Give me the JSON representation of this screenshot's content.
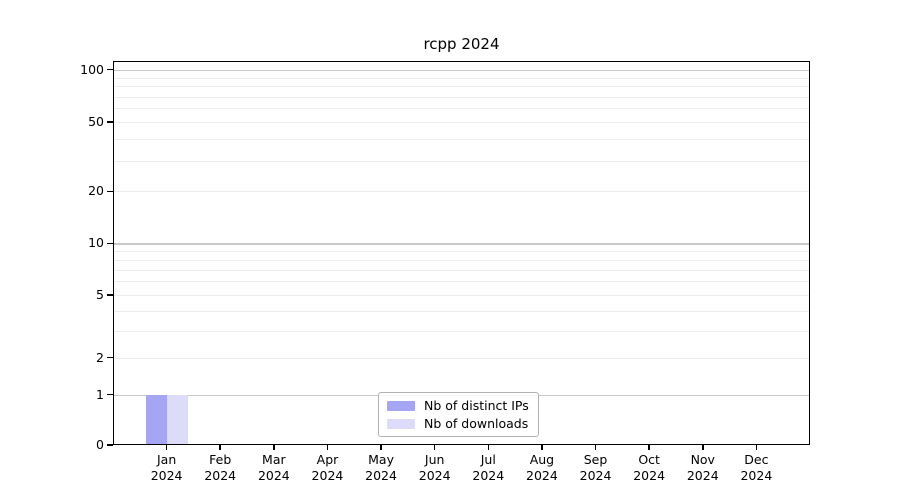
{
  "chart_data": {
    "type": "bar",
    "title": "rcpp 2024",
    "categories": [
      "Jan 2024",
      "Feb 2024",
      "Mar 2024",
      "Apr 2024",
      "May 2024",
      "Jun 2024",
      "Jul 2024",
      "Aug 2024",
      "Sep 2024",
      "Oct 2024",
      "Nov 2024",
      "Dec 2024"
    ],
    "series": [
      {
        "name": "Nb of distinct IPs",
        "color": "#a5a5f3",
        "values": [
          1,
          0,
          0,
          0,
          0,
          0,
          0,
          0,
          0,
          0,
          0,
          0
        ]
      },
      {
        "name": "Nb of downloads",
        "color": "#dcdcf8",
        "values": [
          1,
          0,
          0,
          0,
          0,
          0,
          0,
          0,
          0,
          0,
          0,
          0
        ]
      }
    ],
    "xlabel": "",
    "ylabel": "",
    "yscale": "asinh (log-like, linear near 0)",
    "y_ticks": [
      0,
      1,
      2,
      5,
      10,
      20,
      50,
      100
    ],
    "y_minor_gridlines": [
      2,
      3,
      4,
      5,
      6,
      7,
      8,
      9,
      20,
      30,
      40,
      50,
      60,
      70,
      80,
      90
    ],
    "y_major_gridlines": [
      1,
      10,
      100
    ],
    "ylim": [
      0,
      112
    ],
    "grid": "horizontal major+minor, light gray",
    "legend_position": "lower center"
  },
  "colors": {
    "background": "#ffffff",
    "frame": "#000000",
    "grid_major": "#c9c9c9",
    "grid_minor": "#ededed",
    "legend_border": "#b3b3b3",
    "text": "#000000"
  }
}
